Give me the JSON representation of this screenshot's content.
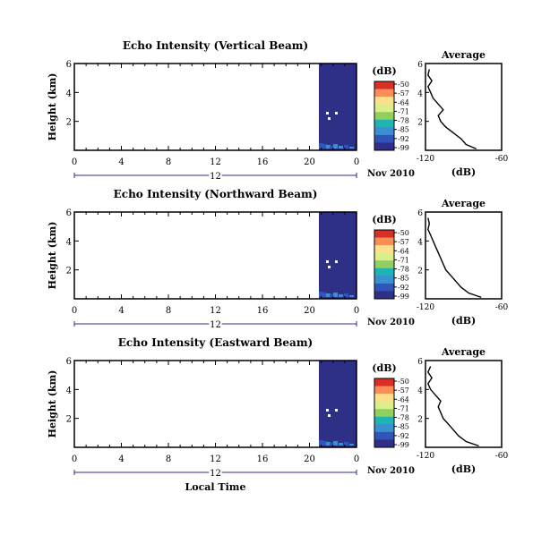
{
  "chart_data": [
    {
      "type": "heatmap",
      "title": "Echo Intensity (Vertical Beam)",
      "ylabel": "Height (km)",
      "xlabel": "",
      "x_ticks": [
        "0",
        "4",
        "8",
        "12",
        "16",
        "20",
        "0"
      ],
      "y_ticks": [
        "6",
        "4",
        "2"
      ],
      "date_ticks": [
        "12"
      ],
      "date_label": "Nov 2010",
      "xlim": [
        0,
        24
      ],
      "ylim": [
        0,
        6
      ],
      "data_start_hour": 20.8,
      "colorbar": {
        "label": "(dB)",
        "ticks": [
          "-50",
          "-57",
          "-64",
          "-71",
          "-78",
          "-85",
          "-92",
          "-99"
        ]
      },
      "average": {
        "title": "Average",
        "xlabel": "(dB)",
        "x_ticks": [
          "-120",
          "-60"
        ],
        "y_ticks": [
          "6",
          "4",
          "2"
        ],
        "xlim": [
          -120,
          -60
        ],
        "ylim": [
          0,
          6
        ],
        "profile": [
          [
            -80,
            0.1
          ],
          [
            -88,
            0.4
          ],
          [
            -92,
            0.8
          ],
          [
            -98,
            1.2
          ],
          [
            -104,
            1.6
          ],
          [
            -108,
            2.0
          ],
          [
            -110,
            2.4
          ],
          [
            -106,
            2.8
          ],
          [
            -110,
            3.2
          ],
          [
            -114,
            3.6
          ],
          [
            -116,
            4.0
          ],
          [
            -118,
            4.4
          ],
          [
            -115,
            4.8
          ],
          [
            -118,
            5.2
          ],
          [
            -117,
            5.6
          ]
        ]
      }
    },
    {
      "type": "heatmap",
      "title": "Echo Intensity (Northward Beam)",
      "ylabel": "Height (km)",
      "xlabel": "",
      "x_ticks": [
        "0",
        "4",
        "8",
        "12",
        "16",
        "20",
        "0"
      ],
      "y_ticks": [
        "6",
        "4",
        "2"
      ],
      "date_ticks": [
        "12"
      ],
      "date_label": "Nov 2010",
      "xlim": [
        0,
        24
      ],
      "ylim": [
        0,
        6
      ],
      "data_start_hour": 20.8,
      "colorbar": {
        "label": "(dB)",
        "ticks": [
          "-50",
          "-57",
          "-64",
          "-71",
          "-78",
          "-85",
          "-92",
          "-99"
        ]
      },
      "average": {
        "title": "Average",
        "xlabel": "(dB)",
        "x_ticks": [
          "-120",
          "-60"
        ],
        "y_ticks": [
          "6",
          "4",
          "2"
        ],
        "xlim": [
          -120,
          -60
        ],
        "ylim": [
          0,
          6
        ],
        "profile": [
          [
            -76,
            0.1
          ],
          [
            -86,
            0.4
          ],
          [
            -92,
            0.8
          ],
          [
            -96,
            1.2
          ],
          [
            -100,
            1.6
          ],
          [
            -104,
            2.0
          ],
          [
            -106,
            2.4
          ],
          [
            -108,
            2.8
          ],
          [
            -110,
            3.2
          ],
          [
            -112,
            3.6
          ],
          [
            -114,
            4.0
          ],
          [
            -116,
            4.4
          ],
          [
            -118,
            4.8
          ],
          [
            -117,
            5.2
          ],
          [
            -118,
            5.6
          ]
        ]
      }
    },
    {
      "type": "heatmap",
      "title": "Echo Intensity (Eastward Beam)",
      "ylabel": "Height (km)",
      "xlabel": "Local Time",
      "x_ticks": [
        "0",
        "4",
        "8",
        "12",
        "16",
        "20",
        "0"
      ],
      "y_ticks": [
        "6",
        "4",
        "2"
      ],
      "date_ticks": [
        "12"
      ],
      "date_label": "Nov 2010",
      "xlim": [
        0,
        24
      ],
      "ylim": [
        0,
        6
      ],
      "data_start_hour": 20.8,
      "colorbar": {
        "label": "(dB)",
        "ticks": [
          "-50",
          "-57",
          "-64",
          "-71",
          "-78",
          "-85",
          "-92",
          "-99"
        ]
      },
      "average": {
        "title": "Average",
        "xlabel": "(dB)",
        "x_ticks": [
          "-120",
          "-60"
        ],
        "y_ticks": [
          "6",
          "4",
          "2"
        ],
        "xlim": [
          -120,
          -60
        ],
        "ylim": [
          0,
          6
        ],
        "profile": [
          [
            -78,
            0.1
          ],
          [
            -88,
            0.4
          ],
          [
            -94,
            0.8
          ],
          [
            -98,
            1.2
          ],
          [
            -102,
            1.6
          ],
          [
            -106,
            2.0
          ],
          [
            -108,
            2.4
          ],
          [
            -110,
            2.8
          ],
          [
            -108,
            3.2
          ],
          [
            -112,
            3.6
          ],
          [
            -116,
            4.0
          ],
          [
            -118,
            4.4
          ],
          [
            -115,
            4.8
          ],
          [
            -118,
            5.2
          ],
          [
            -116,
            5.6
          ]
        ]
      }
    }
  ]
}
